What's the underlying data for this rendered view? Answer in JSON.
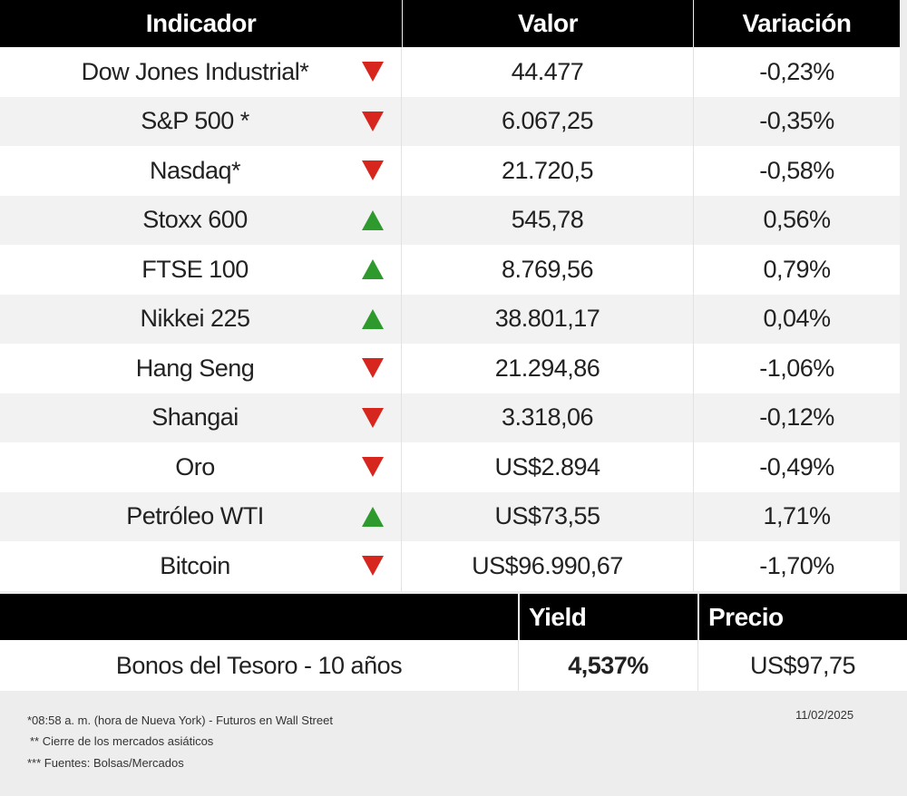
{
  "table": {
    "headers": [
      "Indicador",
      "Valor",
      "Variación"
    ],
    "rows": [
      {
        "name": "Dow Jones Industrial*",
        "trend": "down",
        "value": "44.477",
        "change": "-0,23%"
      },
      {
        "name": "S&P 500 *",
        "trend": "down",
        "value": "6.067,25",
        "change": "-0,35%"
      },
      {
        "name": "Nasdaq*",
        "trend": "down",
        "value": "21.720,5",
        "change": "-0,58%"
      },
      {
        "name": "Stoxx 600",
        "trend": "up",
        "value": "545,78",
        "change": "0,56%"
      },
      {
        "name": "FTSE 100",
        "trend": "up",
        "value": "8.769,56",
        "change": "0,79%"
      },
      {
        "name": "Nikkei 225",
        "trend": "up",
        "value": "38.801,17",
        "change": "0,04%"
      },
      {
        "name": "Hang Seng",
        "trend": "down",
        "value": "21.294,86",
        "change": "-1,06%"
      },
      {
        "name": "Shangai",
        "trend": "down",
        "value": "3.318,06",
        "change": "-0,12%"
      },
      {
        "name": "Oro",
        "trend": "down",
        "value": "US$2.894",
        "change": "-0,49%"
      },
      {
        "name": "Petróleo WTI",
        "trend": "up",
        "value": "US$73,55",
        "change": "1,71%"
      },
      {
        "name": "Bitcoin",
        "trend": "down",
        "value": "US$96.990,67",
        "change": "-1,70%"
      }
    ]
  },
  "bonds": {
    "headers": [
      "Yield",
      "Precio"
    ],
    "row": {
      "name": "Bonos del Tesoro - 10 años",
      "yield": "4,537%",
      "price": "US$97,75"
    }
  },
  "footer": {
    "notes": [
      "*08:58 a. m. (hora de Nueva York)  - Futuros en Wall Street",
      "** Cierre de los mercados asiáticos",
      "*** Fuentes:  Bolsas/Mercados"
    ],
    "date": "11/02/2025"
  }
}
